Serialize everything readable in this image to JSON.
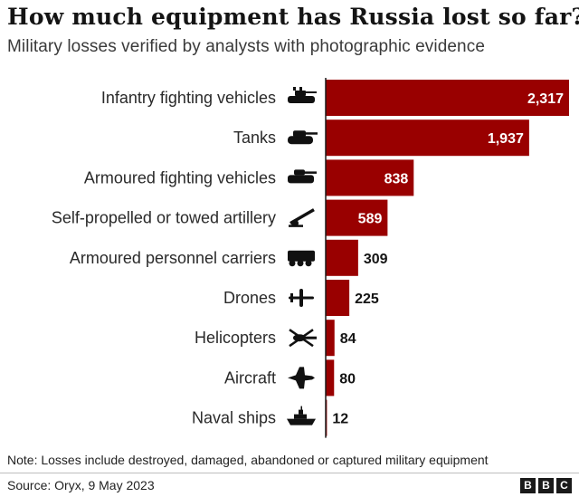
{
  "title": "How much equipment has Russia lost so far?",
  "subtitle": "Military losses verified by analysts with photographic evidence",
  "note": "Note: Losses include destroyed, damaged, abandoned or captured military equipment",
  "source": "Source: Oryx, 9 May 2023",
  "logo": [
    "B",
    "B",
    "C"
  ],
  "colors": {
    "bar": "#990000",
    "inside_label": "#ffffff",
    "outside_label": "#141414",
    "axis": "#1a1a1a",
    "icon": "#111111"
  },
  "chart_data": {
    "type": "bar",
    "orientation": "horizontal",
    "title": "How much equipment has Russia lost so far?",
    "subtitle": "Military losses verified by analysts with photographic evidence",
    "categories": [
      "Infantry fighting vehicles",
      "Tanks",
      "Armoured fighting vehicles",
      "Self-propelled or towed artillery",
      "Armoured personnel carriers",
      "Drones",
      "Helicopters",
      "Aircraft",
      "Naval ships"
    ],
    "values": [
      2317,
      1937,
      838,
      589,
      309,
      225,
      84,
      80,
      12
    ],
    "value_labels": [
      "2,317",
      "1,937",
      "838",
      "589",
      "309",
      "225",
      "84",
      "80",
      "12"
    ],
    "icons": [
      "ifv-icon",
      "tank-icon",
      "afv-icon",
      "artillery-icon",
      "apc-icon",
      "drone-icon",
      "helicopter-icon",
      "aircraft-icon",
      "ship-icon"
    ],
    "xlim": [
      0,
      2317
    ],
    "grid": false,
    "legend": "none"
  }
}
